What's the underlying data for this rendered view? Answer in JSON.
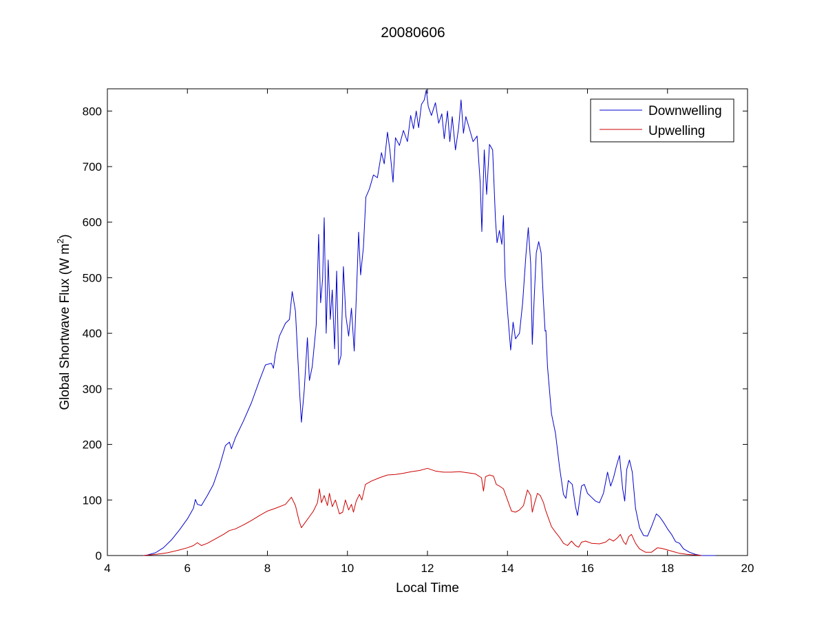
{
  "chart_data": {
    "type": "line",
    "title": "20080606",
    "xlabel": "Local Time",
    "ylabel": "Global Shortwave Flux (W m",
    "ylabel_sup": "2",
    "ylabel_close": ")",
    "xlim": [
      4,
      20
    ],
    "ylim": [
      0,
      840
    ],
    "xticks": [
      4,
      6,
      8,
      10,
      12,
      14,
      16,
      18,
      20
    ],
    "yticks": [
      0,
      100,
      200,
      300,
      400,
      500,
      600,
      700,
      800
    ],
    "grid": false,
    "legend_position": "top-right",
    "series": [
      {
        "name": "Downwelling",
        "color": "#0000cc",
        "points": [
          [
            4.9,
            0
          ],
          [
            5.0,
            1
          ],
          [
            5.2,
            5
          ],
          [
            5.4,
            14
          ],
          [
            5.6,
            28
          ],
          [
            5.8,
            46
          ],
          [
            6.0,
            66
          ],
          [
            6.15,
            85
          ],
          [
            6.2,
            101
          ],
          [
            6.25,
            92
          ],
          [
            6.35,
            90
          ],
          [
            6.5,
            108
          ],
          [
            6.65,
            128
          ],
          [
            6.8,
            160
          ],
          [
            6.95,
            198
          ],
          [
            7.05,
            204
          ],
          [
            7.1,
            192
          ],
          [
            7.2,
            212
          ],
          [
            7.4,
            242
          ],
          [
            7.6,
            275
          ],
          [
            7.8,
            315
          ],
          [
            7.95,
            343
          ],
          [
            8.1,
            346
          ],
          [
            8.15,
            337
          ],
          [
            8.2,
            362
          ],
          [
            8.3,
            395
          ],
          [
            8.45,
            418
          ],
          [
            8.55,
            425
          ],
          [
            8.62,
            475
          ],
          [
            8.7,
            440
          ],
          [
            8.8,
            300
          ],
          [
            8.85,
            240
          ],
          [
            8.92,
            298
          ],
          [
            9.0,
            392
          ],
          [
            9.05,
            315
          ],
          [
            9.12,
            340
          ],
          [
            9.22,
            415
          ],
          [
            9.28,
            578
          ],
          [
            9.33,
            455
          ],
          [
            9.38,
            498
          ],
          [
            9.42,
            608
          ],
          [
            9.47,
            400
          ],
          [
            9.52,
            532
          ],
          [
            9.57,
            425
          ],
          [
            9.62,
            478
          ],
          [
            9.68,
            372
          ],
          [
            9.73,
            512
          ],
          [
            9.78,
            343
          ],
          [
            9.84,
            360
          ],
          [
            9.9,
            520
          ],
          [
            9.96,
            432
          ],
          [
            10.03,
            395
          ],
          [
            10.1,
            445
          ],
          [
            10.17,
            368
          ],
          [
            10.23,
            480
          ],
          [
            10.28,
            582
          ],
          [
            10.33,
            505
          ],
          [
            10.4,
            555
          ],
          [
            10.46,
            645
          ],
          [
            10.55,
            660
          ],
          [
            10.65,
            685
          ],
          [
            10.75,
            680
          ],
          [
            10.85,
            725
          ],
          [
            10.92,
            705
          ],
          [
            11.0,
            762
          ],
          [
            11.06,
            730
          ],
          [
            11.14,
            672
          ],
          [
            11.2,
            752
          ],
          [
            11.3,
            738
          ],
          [
            11.4,
            765
          ],
          [
            11.5,
            745
          ],
          [
            11.58,
            792
          ],
          [
            11.65,
            768
          ],
          [
            11.72,
            800
          ],
          [
            11.78,
            770
          ],
          [
            11.85,
            812
          ],
          [
            11.92,
            820
          ],
          [
            11.97,
            838
          ],
          [
            12.02,
            808
          ],
          [
            12.1,
            792
          ],
          [
            12.2,
            815
          ],
          [
            12.28,
            778
          ],
          [
            12.36,
            795
          ],
          [
            12.42,
            750
          ],
          [
            12.5,
            800
          ],
          [
            12.56,
            745
          ],
          [
            12.62,
            790
          ],
          [
            12.7,
            730
          ],
          [
            12.78,
            770
          ],
          [
            12.84,
            820
          ],
          [
            12.9,
            760
          ],
          [
            12.96,
            790
          ],
          [
            13.05,
            768
          ],
          [
            13.14,
            745
          ],
          [
            13.24,
            755
          ],
          [
            13.32,
            670
          ],
          [
            13.36,
            583
          ],
          [
            13.42,
            730
          ],
          [
            13.48,
            650
          ],
          [
            13.55,
            740
          ],
          [
            13.63,
            730
          ],
          [
            13.7,
            605
          ],
          [
            13.74,
            563
          ],
          [
            13.8,
            585
          ],
          [
            13.86,
            560
          ],
          [
            13.9,
            612
          ],
          [
            13.94,
            500
          ],
          [
            14.0,
            440
          ],
          [
            14.08,
            370
          ],
          [
            14.14,
            420
          ],
          [
            14.2,
            390
          ],
          [
            14.3,
            400
          ],
          [
            14.38,
            455
          ],
          [
            14.46,
            540
          ],
          [
            14.52,
            590
          ],
          [
            14.58,
            525
          ],
          [
            14.62,
            380
          ],
          [
            14.66,
            450
          ],
          [
            14.72,
            545
          ],
          [
            14.78,
            565
          ],
          [
            14.84,
            545
          ],
          [
            14.9,
            455
          ],
          [
            14.94,
            404
          ],
          [
            14.96,
            405
          ],
          [
            15.0,
            340
          ],
          [
            15.1,
            255
          ],
          [
            15.2,
            220
          ],
          [
            15.3,
            160
          ],
          [
            15.4,
            110
          ],
          [
            15.46,
            103
          ],
          [
            15.52,
            135
          ],
          [
            15.62,
            128
          ],
          [
            15.7,
            88
          ],
          [
            15.75,
            72
          ],
          [
            15.85,
            125
          ],
          [
            15.92,
            128
          ],
          [
            16.0,
            112
          ],
          [
            16.1,
            105
          ],
          [
            16.2,
            98
          ],
          [
            16.3,
            95
          ],
          [
            16.4,
            112
          ],
          [
            16.5,
            150
          ],
          [
            16.58,
            125
          ],
          [
            16.65,
            140
          ],
          [
            16.72,
            160
          ],
          [
            16.8,
            180
          ],
          [
            16.88,
            120
          ],
          [
            16.93,
            98
          ],
          [
            16.98,
            155
          ],
          [
            17.05,
            172
          ],
          [
            17.12,
            150
          ],
          [
            17.2,
            85
          ],
          [
            17.3,
            50
          ],
          [
            17.4,
            36
          ],
          [
            17.5,
            35
          ],
          [
            17.6,
            52
          ],
          [
            17.72,
            75
          ],
          [
            17.8,
            70
          ],
          [
            17.9,
            60
          ],
          [
            18.0,
            48
          ],
          [
            18.1,
            38
          ],
          [
            18.2,
            25
          ],
          [
            18.3,
            22
          ],
          [
            18.4,
            12
          ],
          [
            18.55,
            6
          ],
          [
            18.7,
            2
          ],
          [
            18.85,
            0
          ],
          [
            19.2,
            0
          ]
        ]
      },
      {
        "name": "Upwelling",
        "color": "#cc0000",
        "points": [
          [
            4.9,
            0
          ],
          [
            5.2,
            2
          ],
          [
            5.5,
            5
          ],
          [
            5.8,
            10
          ],
          [
            6.0,
            14
          ],
          [
            6.15,
            18
          ],
          [
            6.25,
            23
          ],
          [
            6.35,
            18
          ],
          [
            6.5,
            22
          ],
          [
            6.7,
            30
          ],
          [
            6.9,
            38
          ],
          [
            7.05,
            45
          ],
          [
            7.2,
            48
          ],
          [
            7.4,
            55
          ],
          [
            7.6,
            63
          ],
          [
            7.8,
            72
          ],
          [
            8.0,
            80
          ],
          [
            8.2,
            85
          ],
          [
            8.45,
            92
          ],
          [
            8.6,
            105
          ],
          [
            8.7,
            90
          ],
          [
            8.8,
            60
          ],
          [
            8.85,
            50
          ],
          [
            8.95,
            60
          ],
          [
            9.05,
            70
          ],
          [
            9.15,
            80
          ],
          [
            9.25,
            95
          ],
          [
            9.3,
            120
          ],
          [
            9.35,
            95
          ],
          [
            9.42,
            108
          ],
          [
            9.5,
            90
          ],
          [
            9.55,
            112
          ],
          [
            9.62,
            88
          ],
          [
            9.7,
            100
          ],
          [
            9.8,
            75
          ],
          [
            9.88,
            78
          ],
          [
            9.95,
            100
          ],
          [
            10.03,
            82
          ],
          [
            10.1,
            92
          ],
          [
            10.15,
            78
          ],
          [
            10.22,
            98
          ],
          [
            10.3,
            110
          ],
          [
            10.36,
            100
          ],
          [
            10.45,
            128
          ],
          [
            10.6,
            134
          ],
          [
            10.8,
            140
          ],
          [
            11.0,
            145
          ],
          [
            11.2,
            146
          ],
          [
            11.4,
            148
          ],
          [
            11.6,
            151
          ],
          [
            11.8,
            153
          ],
          [
            12.0,
            157
          ],
          [
            12.2,
            152
          ],
          [
            12.4,
            150
          ],
          [
            12.6,
            150
          ],
          [
            12.8,
            151
          ],
          [
            13.0,
            149
          ],
          [
            13.2,
            147
          ],
          [
            13.35,
            140
          ],
          [
            13.4,
            116
          ],
          [
            13.45,
            142
          ],
          [
            13.55,
            145
          ],
          [
            13.65,
            143
          ],
          [
            13.72,
            128
          ],
          [
            13.8,
            125
          ],
          [
            13.9,
            120
          ],
          [
            14.0,
            100
          ],
          [
            14.1,
            80
          ],
          [
            14.2,
            78
          ],
          [
            14.3,
            82
          ],
          [
            14.4,
            90
          ],
          [
            14.5,
            118
          ],
          [
            14.58,
            108
          ],
          [
            14.62,
            78
          ],
          [
            14.68,
            95
          ],
          [
            14.75,
            112
          ],
          [
            14.82,
            108
          ],
          [
            14.9,
            95
          ],
          [
            14.95,
            82
          ],
          [
            15.0,
            72
          ],
          [
            15.1,
            52
          ],
          [
            15.2,
            42
          ],
          [
            15.3,
            33
          ],
          [
            15.4,
            22
          ],
          [
            15.5,
            18
          ],
          [
            15.6,
            26
          ],
          [
            15.7,
            18
          ],
          [
            15.78,
            15
          ],
          [
            15.85,
            24
          ],
          [
            15.95,
            26
          ],
          [
            16.1,
            22
          ],
          [
            16.3,
            21
          ],
          [
            16.45,
            24
          ],
          [
            16.55,
            30
          ],
          [
            16.65,
            26
          ],
          [
            16.75,
            32
          ],
          [
            16.82,
            38
          ],
          [
            16.9,
            25
          ],
          [
            16.96,
            20
          ],
          [
            17.03,
            34
          ],
          [
            17.1,
            38
          ],
          [
            17.2,
            22
          ],
          [
            17.3,
            12
          ],
          [
            17.45,
            6
          ],
          [
            17.6,
            6
          ],
          [
            17.75,
            14
          ],
          [
            17.85,
            13
          ],
          [
            18.0,
            10
          ],
          [
            18.15,
            7
          ],
          [
            18.3,
            4
          ],
          [
            18.5,
            2
          ],
          [
            18.7,
            1
          ],
          [
            18.85,
            0
          ]
        ]
      }
    ]
  }
}
